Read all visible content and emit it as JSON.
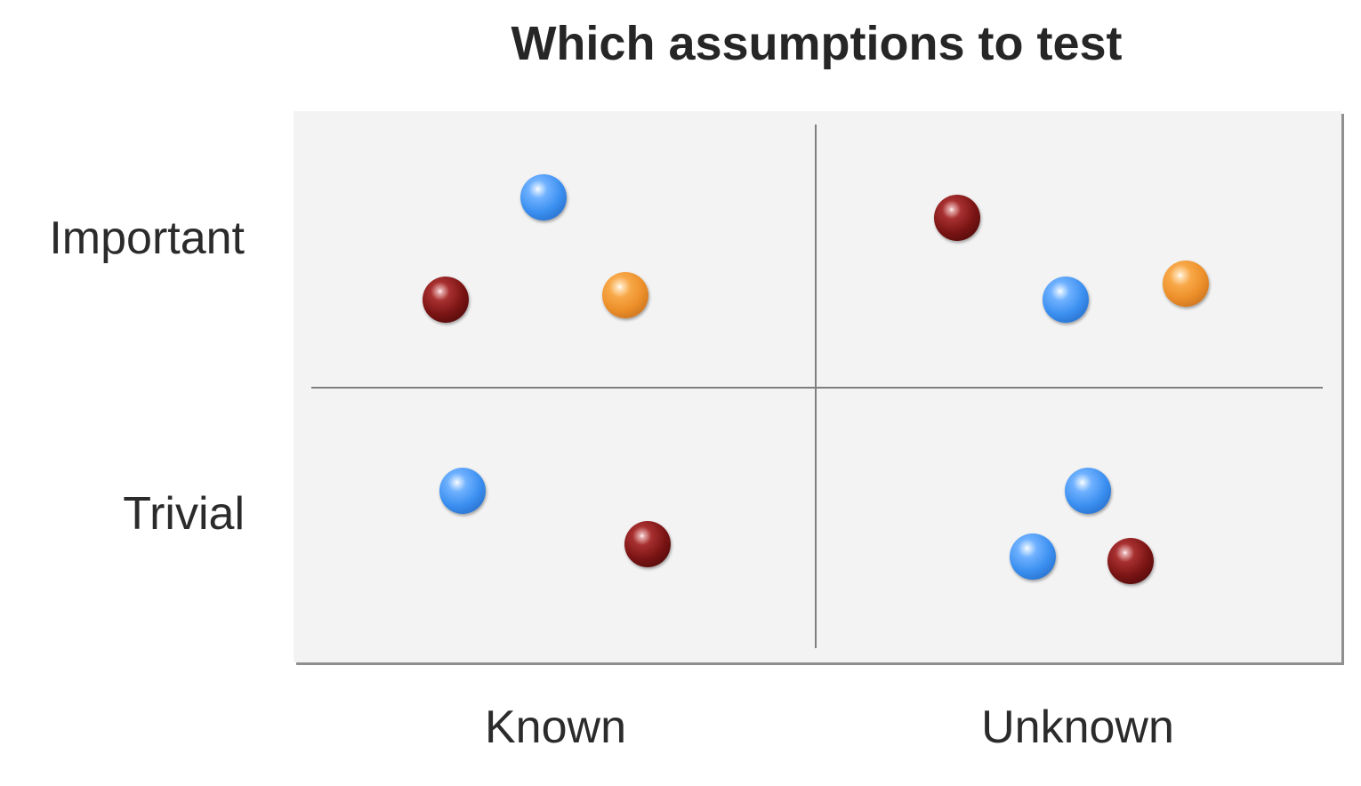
{
  "title": "Which assumptions to test",
  "y_axis": {
    "top_label": "Important",
    "bottom_label": "Trivial"
  },
  "x_axis": {
    "left_label": "Known",
    "right_label": "Unknown"
  },
  "quadrants": {
    "important_known": [
      "blue",
      "red",
      "orange"
    ],
    "important_unknown": [
      "red",
      "blue",
      "orange"
    ],
    "trivial_known": [
      "blue",
      "red"
    ],
    "trivial_unknown": [
      "blue",
      "blue",
      "red"
    ]
  },
  "colors": {
    "background": "#f3f3f3",
    "divider": "#7f7f7f",
    "blue": "#3b8ff0",
    "red": "#7a1414",
    "orange": "#ec8f2a"
  }
}
